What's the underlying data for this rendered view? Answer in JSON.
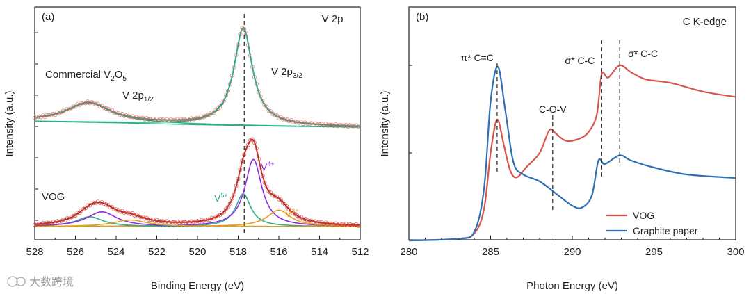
{
  "chart_data": [
    {
      "type": "line",
      "panel": "(a)",
      "title": "V 2p",
      "xlabel": "Binding Energy (eV)",
      "ylabel": "Intensity (a.u.)",
      "xlim": [
        528,
        512
      ],
      "xticks": [
        "528",
        "526",
        "524",
        "522",
        "520",
        "518",
        "516",
        "514",
        "512"
      ],
      "reference_line_x": 517.7,
      "groups": [
        {
          "name": "Commercial V2O5",
          "label_main": "Commercial V",
          "label_sub": "2",
          "label_main2": "O",
          "label_sub2": "5",
          "peak_labels": [
            {
              "text": "V 2p",
              "sub": "1/2",
              "x": 524.6
            },
            {
              "text": "V 2p",
              "sub": "3/2",
              "x": 515.6
            }
          ],
          "baseline": [
            [
              528,
              0.06
            ],
            [
              524,
              0.045
            ],
            [
              520,
              0.025
            ],
            [
              516,
              0.01
            ],
            [
              512,
              0.0
            ]
          ],
          "components": [
            {
              "name": "V 2p3/2",
              "center": 517.75,
              "amp": 1.0,
              "width": 0.55,
              "color": "#2bb08a"
            },
            {
              "name": "V 2p1/2",
              "center": 525.35,
              "amp": 0.2,
              "width": 1.3,
              "color": "#2bb08a"
            }
          ],
          "envelope_color": "#d9534f"
        },
        {
          "name": "VOG",
          "label_main": "VOG",
          "baseline": [
            [
              528,
              0.0
            ],
            [
              512,
              0.0
            ]
          ],
          "components": [
            {
              "name": "V5+",
              "center": 517.75,
              "amp": 0.4,
              "width": 0.45,
              "color": "#2bb08a"
            },
            {
              "name": "V4+",
              "center": 517.25,
              "amp": 0.82,
              "width": 0.5,
              "color": "#8a2be2"
            },
            {
              "name": "V3+",
              "center": 516.0,
              "amp": 0.2,
              "width": 0.7,
              "color": "#e0a020"
            },
            {
              "name": "V 2p1/2 a",
              "center": 525.3,
              "amp": 0.12,
              "width": 0.8,
              "color": "#2bb08a"
            },
            {
              "name": "V 2p1/2 b",
              "center": 524.7,
              "amp": 0.18,
              "width": 0.9,
              "color": "#8a2be2"
            },
            {
              "name": "V 2p1/2 c",
              "center": 523.3,
              "amp": 0.08,
              "width": 1.0,
              "color": "#e0a020"
            }
          ],
          "envelope_color": "#c0322b",
          "peak_labels": [
            {
              "text": "V",
              "sup": "5+",
              "color": "#2bb08a"
            },
            {
              "text": "V",
              "sup": "4+",
              "color": "#8a2be2"
            },
            {
              "text": "V",
              "sup": "3+",
              "color": "#e0a020"
            }
          ]
        }
      ]
    },
    {
      "type": "line",
      "panel": "(b)",
      "title": "C K-edge",
      "xlabel": "Photon Energy (eV)",
      "ylabel": "Intensity (a.u.)",
      "xlim": [
        280,
        300
      ],
      "xticks": [
        "280",
        "285",
        "290",
        "295",
        "300"
      ],
      "annotations": [
        {
          "text": "π* C=C",
          "x": 285.4
        },
        {
          "text": "C-O-V",
          "x": 288.8
        },
        {
          "text": "σ* C-C",
          "x": 291.8
        },
        {
          "text": "σ* C-C",
          "x": 292.9
        }
      ],
      "series": [
        {
          "name": "VOG",
          "color": "#d9534f",
          "points": [
            [
              280,
              0.0
            ],
            [
              283,
              0.01
            ],
            [
              284,
              0.04
            ],
            [
              284.6,
              0.18
            ],
            [
              285.0,
              0.5
            ],
            [
              285.4,
              0.69
            ],
            [
              285.8,
              0.55
            ],
            [
              286.2,
              0.4
            ],
            [
              286.6,
              0.36
            ],
            [
              287.2,
              0.42
            ],
            [
              288.0,
              0.5
            ],
            [
              288.6,
              0.63
            ],
            [
              289.0,
              0.61
            ],
            [
              289.6,
              0.57
            ],
            [
              290.4,
              0.58
            ],
            [
              291.0,
              0.62
            ],
            [
              291.5,
              0.72
            ],
            [
              291.8,
              0.95
            ],
            [
              292.2,
              0.93
            ],
            [
              292.9,
              1.0
            ],
            [
              293.6,
              0.96
            ],
            [
              294.5,
              0.92
            ],
            [
              296,
              0.9
            ],
            [
              298,
              0.85
            ],
            [
              300,
              0.82
            ]
          ]
        },
        {
          "name": "Graphite paper",
          "color": "#2f6fb5",
          "points": [
            [
              280,
              0.0
            ],
            [
              283,
              0.01
            ],
            [
              284,
              0.05
            ],
            [
              284.6,
              0.3
            ],
            [
              285.0,
              0.8
            ],
            [
              285.45,
              1.0
            ],
            [
              285.9,
              0.75
            ],
            [
              286.4,
              0.45
            ],
            [
              287.0,
              0.38
            ],
            [
              288.0,
              0.34
            ],
            [
              289.0,
              0.27
            ],
            [
              290.0,
              0.2
            ],
            [
              290.6,
              0.19
            ],
            [
              291.2,
              0.26
            ],
            [
              291.6,
              0.46
            ],
            [
              292.0,
              0.44
            ],
            [
              292.9,
              0.49
            ],
            [
              293.6,
              0.46
            ],
            [
              295,
              0.42
            ],
            [
              297,
              0.38
            ],
            [
              300,
              0.36
            ]
          ]
        }
      ],
      "legend": [
        "VOG",
        "Graphite paper"
      ]
    }
  ],
  "watermark": "大数跨境"
}
